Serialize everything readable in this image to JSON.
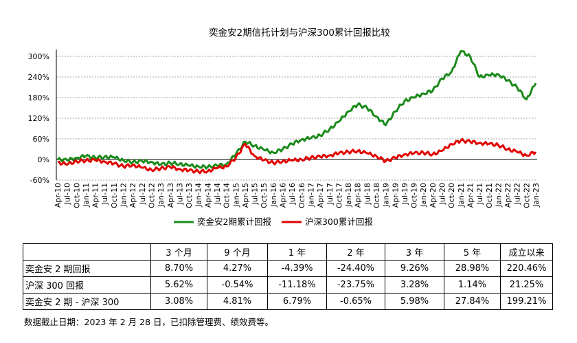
{
  "chart_data": {
    "type": "line",
    "title": "奕金安2期信托计划与沪深300累计回报比较",
    "y_ticks": [
      "300%",
      "240%",
      "180%",
      "120%",
      "60%",
      "0%",
      "-60%"
    ],
    "ylim": [
      -60,
      320
    ],
    "x_ticks": [
      "Apr-10",
      "Jul-10",
      "Oct-10",
      "Jan-11",
      "Apr-11",
      "Jul-11",
      "Oct-11",
      "Jan-12",
      "Apr-12",
      "Jul-12",
      "Oct-12",
      "Jan-13",
      "Apr-13",
      "Jul-13",
      "Oct-13",
      "Jan-14",
      "Apr-14",
      "Jul-14",
      "Oct-14",
      "Jan-15",
      "Apr-15",
      "Jul-15",
      "Oct-15",
      "Jan-16",
      "Apr-16",
      "Jul-16",
      "Oct-16",
      "Jan-17",
      "Apr-17",
      "Jul-17",
      "Oct-17",
      "Jan-18",
      "Apr-18",
      "Jul-18",
      "Oct-18",
      "Jan-19",
      "Apr-19",
      "Jul-19",
      "Oct-19",
      "Jan-20",
      "Apr-20",
      "Jul-20",
      "Oct-20",
      "Jan-21",
      "Apr-21",
      "Jul-21",
      "Oct-21",
      "Jan-22",
      "Apr-22",
      "Jul-22",
      "Oct-22",
      "Jan-23"
    ],
    "grid": "horizontal dashed",
    "legend_position": "bottom",
    "series": [
      {
        "name": "奕金安2期累计回报",
        "color": "#1a8a1a",
        "values": [
          [
            0,
            0
          ],
          [
            1,
            -2
          ],
          [
            2,
            5
          ],
          [
            3,
            10
          ],
          [
            4,
            5
          ],
          [
            5,
            8
          ],
          [
            6,
            6
          ],
          [
            7,
            -2
          ],
          [
            8,
            -8
          ],
          [
            9,
            -5
          ],
          [
            10,
            -7
          ],
          [
            11,
            -15
          ],
          [
            12,
            -10
          ],
          [
            13,
            -13
          ],
          [
            14,
            -18
          ],
          [
            15,
            -20
          ],
          [
            16,
            -22
          ],
          [
            17,
            -18
          ],
          [
            18,
            -14
          ],
          [
            19,
            15
          ],
          [
            20,
            52
          ],
          [
            21,
            40
          ],
          [
            22,
            28
          ],
          [
            23,
            20
          ],
          [
            24,
            30
          ],
          [
            25,
            45
          ],
          [
            26,
            58
          ],
          [
            27,
            62
          ],
          [
            28,
            70
          ],
          [
            29,
            88
          ],
          [
            30,
            110
          ],
          [
            31,
            140
          ],
          [
            32,
            160
          ],
          [
            33,
            150
          ],
          [
            34,
            125
          ],
          [
            35,
            100
          ],
          [
            36,
            140
          ],
          [
            37,
            170
          ],
          [
            38,
            180
          ],
          [
            39,
            192
          ],
          [
            40,
            200
          ],
          [
            41,
            235
          ],
          [
            42,
            255
          ],
          [
            43,
            315
          ],
          [
            44,
            300
          ],
          [
            45,
            240
          ],
          [
            46,
            245
          ],
          [
            47,
            248
          ],
          [
            48,
            230
          ],
          [
            49,
            210
          ],
          [
            50,
            175
          ],
          [
            51,
            222
          ]
        ]
      },
      {
        "name": "沪深300累计回报",
        "color": "#e00000",
        "values": [
          [
            0,
            -8
          ],
          [
            1,
            -15
          ],
          [
            2,
            -5
          ],
          [
            3,
            -3
          ],
          [
            4,
            -2
          ],
          [
            5,
            -6
          ],
          [
            6,
            -12
          ],
          [
            7,
            -20
          ],
          [
            8,
            -16
          ],
          [
            9,
            -24
          ],
          [
            10,
            -30
          ],
          [
            11,
            -26
          ],
          [
            12,
            -22
          ],
          [
            13,
            -28
          ],
          [
            14,
            -32
          ],
          [
            15,
            -35
          ],
          [
            16,
            -34
          ],
          [
            17,
            -25
          ],
          [
            18,
            -20
          ],
          [
            19,
            5
          ],
          [
            20,
            45
          ],
          [
            21,
            10
          ],
          [
            22,
            -2
          ],
          [
            23,
            -10
          ],
          [
            24,
            -5
          ],
          [
            25,
            -3
          ],
          [
            26,
            0
          ],
          [
            27,
            5
          ],
          [
            28,
            8
          ],
          [
            29,
            12
          ],
          [
            30,
            18
          ],
          [
            31,
            22
          ],
          [
            32,
            25
          ],
          [
            33,
            18
          ],
          [
            34,
            10
          ],
          [
            35,
            -5
          ],
          [
            36,
            5
          ],
          [
            37,
            15
          ],
          [
            38,
            18
          ],
          [
            39,
            20
          ],
          [
            40,
            15
          ],
          [
            41,
            25
          ],
          [
            42,
            45
          ],
          [
            43,
            55
          ],
          [
            44,
            52
          ],
          [
            45,
            48
          ],
          [
            46,
            45
          ],
          [
            47,
            42
          ],
          [
            48,
            30
          ],
          [
            49,
            22
          ],
          [
            50,
            12
          ],
          [
            51,
            22
          ]
        ]
      }
    ]
  },
  "table": {
    "headers": [
      "",
      "3 个月",
      "9 个月",
      "1 年",
      "2 年",
      "3 年",
      "5 年",
      "成立以来"
    ],
    "rows": [
      [
        "奕金安 2 期回报",
        "8.70%",
        "4.27%",
        "-4.39%",
        "-24.40%",
        "9.26%",
        "28.98%",
        "220.46%"
      ],
      [
        "沪深 300 回报",
        "5.62%",
        "-0.54%",
        "-11.18%",
        "-23.75%",
        "3.28%",
        "1.14%",
        "21.25%"
      ],
      [
        "奕金安 2 期 - 沪深 300",
        "3.08%",
        "4.81%",
        "6.79%",
        "-0.65%",
        "5.98%",
        "27.84%",
        "199.21%"
      ]
    ]
  },
  "footnote": "数据截止日期：2023 年 2 月 28 日，已扣除管理费、绩效费等。"
}
